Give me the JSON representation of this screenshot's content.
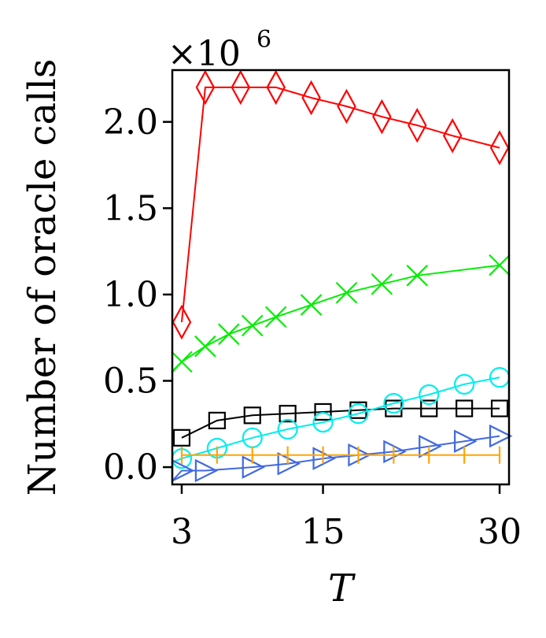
{
  "chart_data": {
    "type": "line",
    "title": "",
    "xlabel": "T",
    "ylabel": "Number of oracle calls",
    "y_multiplier": {
      "base": "×10",
      "exponent": "6"
    },
    "xlim": [
      2.2,
      30.8
    ],
    "ylim": [
      -0.1,
      2.3
    ],
    "xticks": [
      {
        "value": 3,
        "label": "3"
      },
      {
        "value": 15,
        "label": "15"
      },
      {
        "value": 30,
        "label": "30"
      }
    ],
    "yticks": [
      {
        "value": 0.0,
        "label": "0.0"
      },
      {
        "value": 0.5,
        "label": "0.5"
      },
      {
        "value": 1.0,
        "label": "1.0"
      },
      {
        "value": 1.5,
        "label": "1.5"
      },
      {
        "value": 2.0,
        "label": "2.0"
      }
    ],
    "x": [
      3,
      6,
      9,
      12,
      15,
      18,
      21,
      24,
      27,
      30
    ],
    "series": [
      {
        "name": "red-diamond",
        "color": "#ff0000",
        "marker": "diamond",
        "values": [
          0.84,
          2.2,
          2.2,
          2.2,
          2.14,
          2.09,
          2.03,
          1.98,
          1.92,
          1.85
        ],
        "marker_x": [
          3,
          5.0,
          8.0,
          11.0,
          14.0,
          17.0,
          20.0,
          23.0,
          26.0,
          30
        ]
      },
      {
        "name": "green-x",
        "color": "#00ee00",
        "marker": "x",
        "values": [
          0.61,
          0.7,
          0.77,
          0.82,
          0.87,
          0.94,
          1.01,
          1.06,
          1.11,
          1.17
        ],
        "marker_x": [
          3,
          5.0,
          7.0,
          9.0,
          11.0,
          14.0,
          17.0,
          20.0,
          23.0,
          30
        ]
      },
      {
        "name": "black-square",
        "color": "#000000",
        "marker": "square",
        "values": [
          0.17,
          0.27,
          0.3,
          0.31,
          0.32,
          0.33,
          0.34,
          0.34,
          0.34,
          0.34
        ],
        "marker_x": [
          3,
          6,
          9,
          12,
          15,
          18,
          21,
          24,
          27,
          30
        ]
      },
      {
        "name": "cyan-circle",
        "color": "#00eeee",
        "marker": "circle",
        "values": [
          0.05,
          0.11,
          0.17,
          0.22,
          0.26,
          0.31,
          0.37,
          0.42,
          0.48,
          0.52
        ],
        "marker_x": [
          3,
          6,
          9,
          12,
          15,
          18,
          21,
          24,
          27,
          30
        ]
      },
      {
        "name": "blue-triangle",
        "color": "#4169e1",
        "marker": "triangle-right",
        "values": [
          -0.02,
          -0.02,
          0.0,
          0.02,
          0.05,
          0.07,
          0.09,
          0.12,
          0.15,
          0.18
        ],
        "marker_x": [
          3,
          5,
          9,
          12,
          15,
          18,
          21,
          24,
          27,
          30
        ]
      },
      {
        "name": "orange-vline",
        "color": "#ffa500",
        "marker": "vline",
        "values": [
          0.07,
          0.07,
          0.07,
          0.07,
          0.07,
          0.07,
          0.07,
          0.07,
          0.07,
          0.07
        ],
        "marker_x": [
          3,
          6,
          9,
          12,
          15,
          18,
          21,
          24,
          27,
          30
        ]
      }
    ]
  }
}
